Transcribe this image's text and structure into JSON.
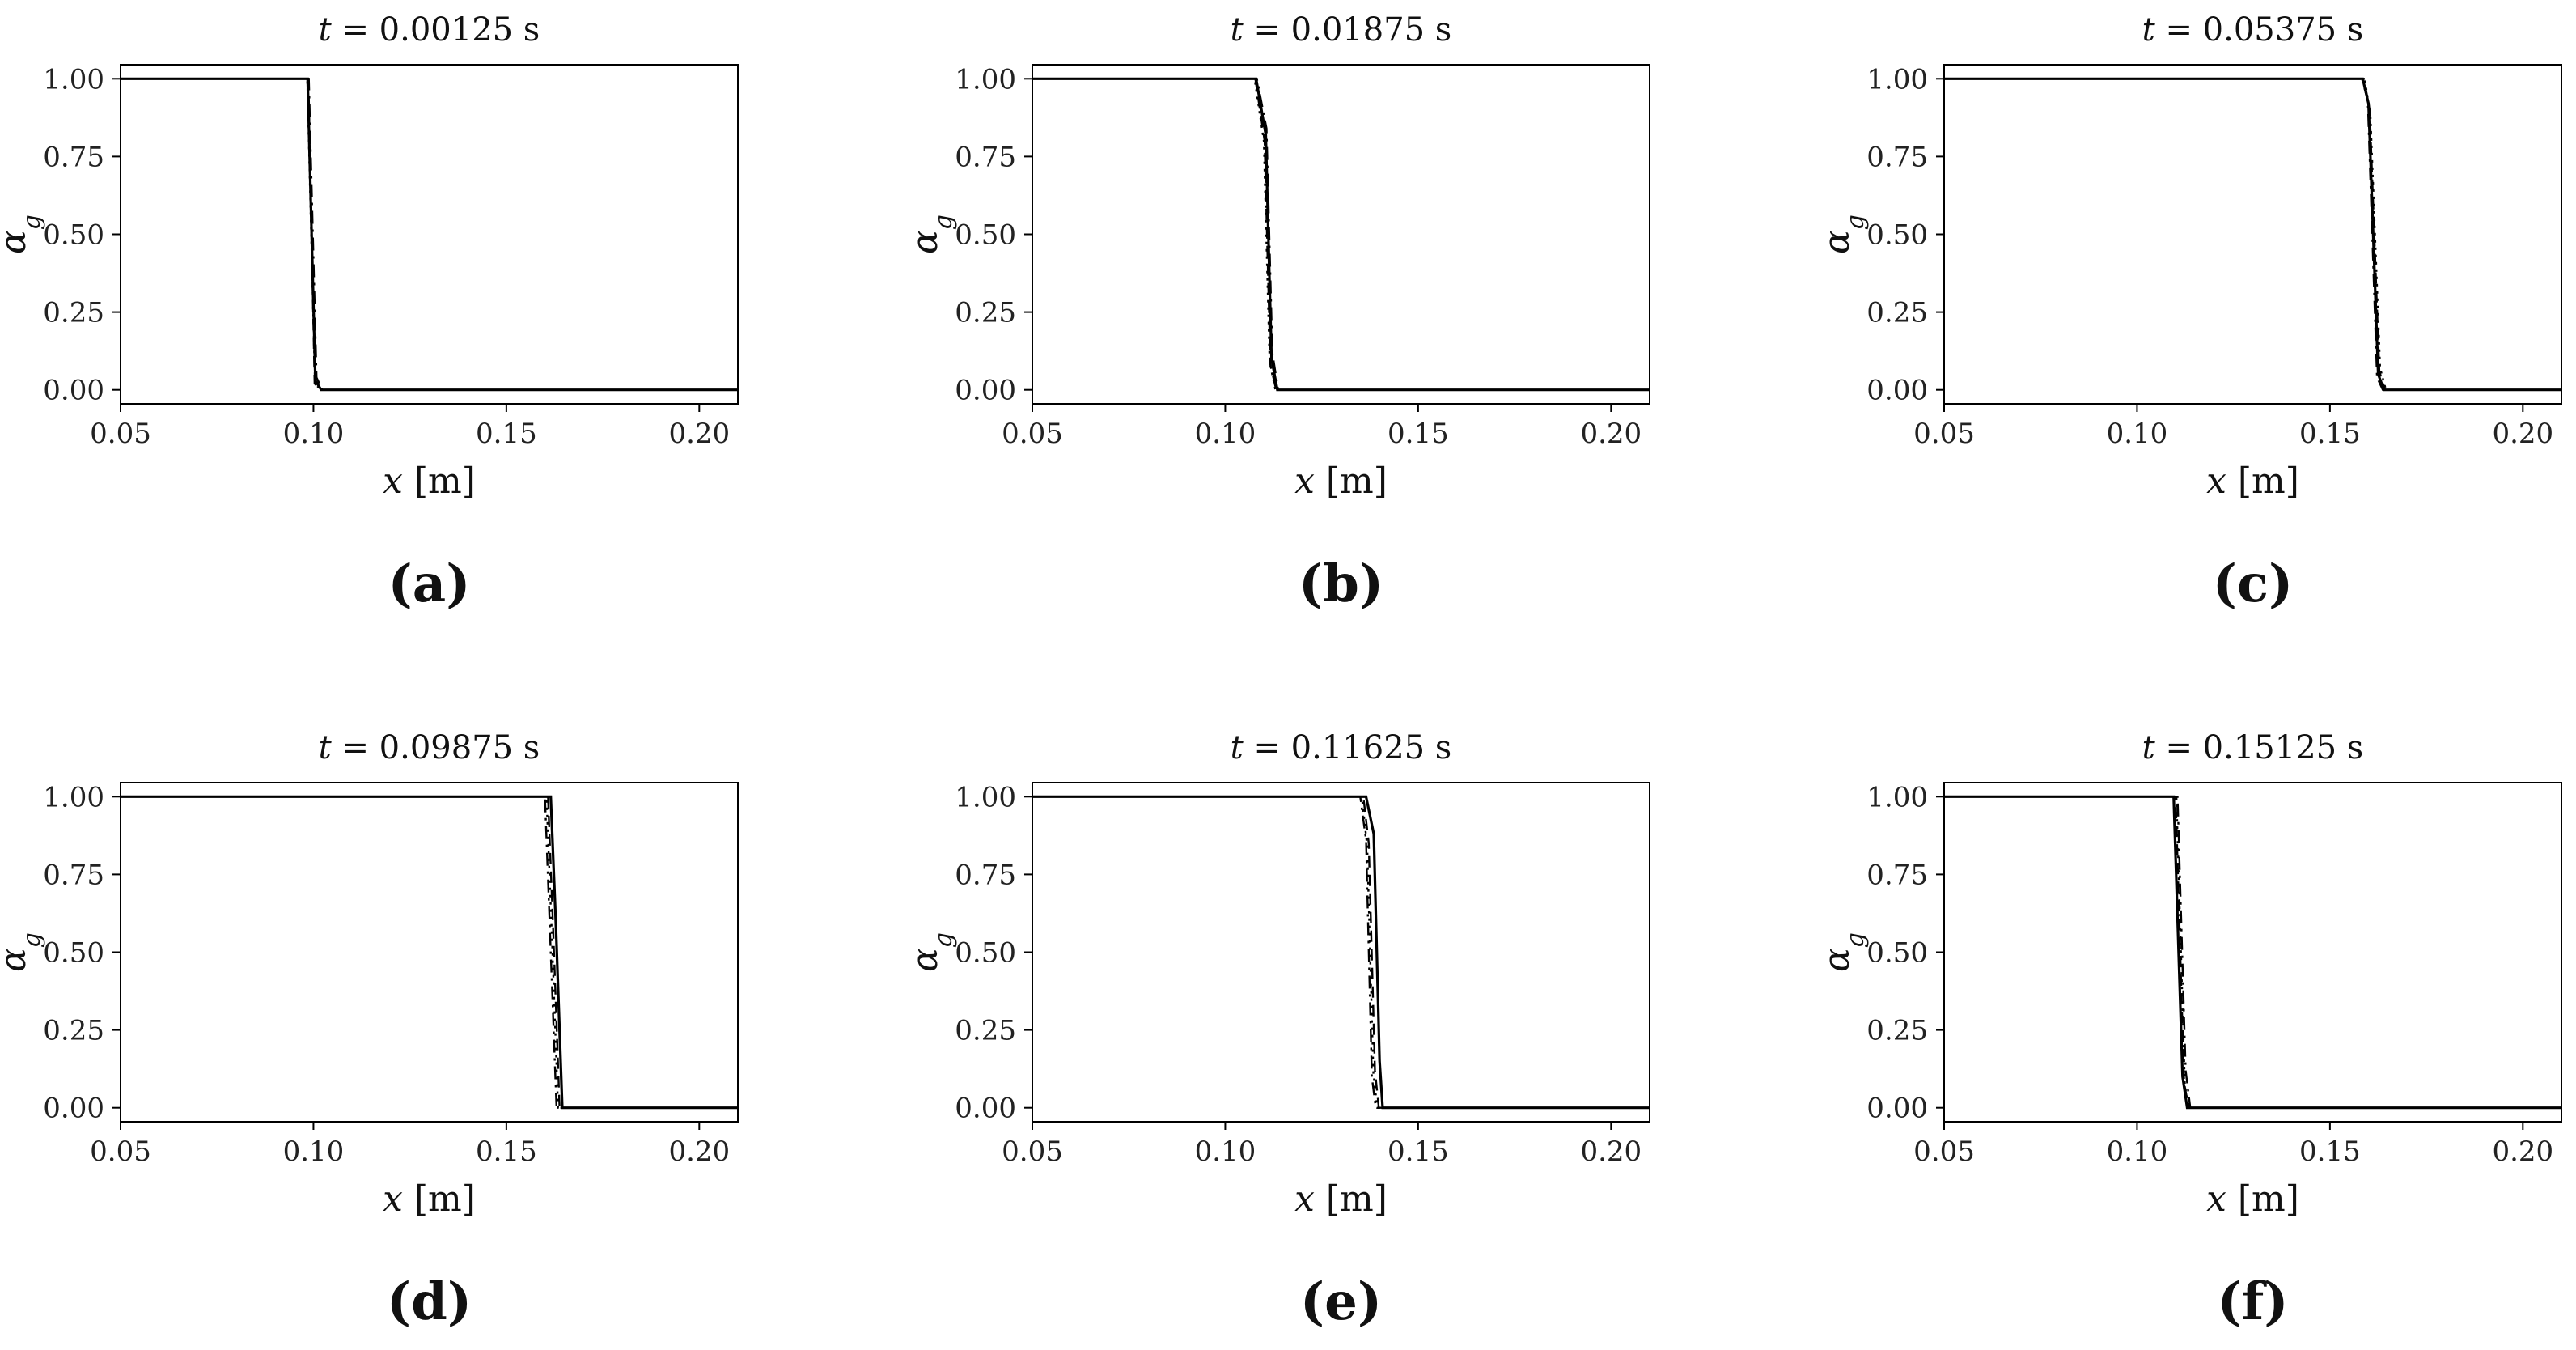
{
  "figure": {
    "panels": [
      {
        "tag": "(a)",
        "title": "t = 0.00125 s",
        "chart_data": {
          "type": "line",
          "xlabel": "x [m]",
          "ylabel": "αg",
          "xlim": [
            0.05,
            0.21
          ],
          "ylim": [
            -0.045,
            1.045
          ],
          "xticks": [
            "0.05",
            "0.10",
            "0.15",
            "0.20"
          ],
          "yticks": [
            "0.00",
            "0.25",
            "0.50",
            "0.75",
            "1.00"
          ],
          "grid": false,
          "series": [
            {
              "style": "solid",
              "x": [
                0.05,
                0.0985,
                0.1005,
                0.102,
                0.21
              ],
              "y": [
                1,
                1,
                0.03,
                0,
                0
              ]
            },
            {
              "style": "dashed",
              "x": [
                0.05,
                0.0987,
                0.1003,
                0.102,
                0.21
              ],
              "y": [
                1,
                1,
                0.02,
                0,
                0
              ]
            },
            {
              "style": "dashdot",
              "x": [
                0.05,
                0.0988,
                0.1008,
                0.1023,
                0.21
              ],
              "y": [
                1,
                1,
                0.04,
                0,
                0
              ]
            },
            {
              "style": "dotted",
              "x": [
                0.05,
                0.0984,
                0.1004,
                0.1019,
                0.21
              ],
              "y": [
                1,
                1,
                0.02,
                0,
                0
              ]
            }
          ]
        }
      },
      {
        "tag": "(b)",
        "title": "t = 0.01875 s",
        "chart_data": {
          "type": "line",
          "xlabel": "x [m]",
          "ylabel": "αg",
          "xlim": [
            0.05,
            0.21
          ],
          "ylim": [
            -0.045,
            1.045
          ],
          "xticks": [
            "0.05",
            "0.10",
            "0.15",
            "0.20"
          ],
          "yticks": [
            "0.00",
            "0.25",
            "0.50",
            "0.75",
            "1.00"
          ],
          "grid": false,
          "series": [
            {
              "style": "solid",
              "x": [
                0.05,
                0.108,
                0.1105,
                0.112,
                0.1135,
                0.21
              ],
              "y": [
                1,
                1,
                0.82,
                0.1,
                0,
                0
              ]
            },
            {
              "style": "dashed",
              "x": [
                0.05,
                0.1078,
                0.1102,
                0.1117,
                0.1132,
                0.21
              ],
              "y": [
                1,
                1,
                0.8,
                0.08,
                0,
                0
              ]
            },
            {
              "style": "dashdot",
              "x": [
                0.05,
                0.1082,
                0.1107,
                0.1122,
                0.1137,
                0.21
              ],
              "y": [
                1,
                1,
                0.84,
                0.12,
                0,
                0
              ]
            },
            {
              "style": "dotted",
              "x": [
                0.05,
                0.1076,
                0.11,
                0.1115,
                0.113,
                0.21
              ],
              "y": [
                1,
                1,
                0.8,
                0.09,
                0,
                0
              ]
            }
          ]
        }
      },
      {
        "tag": "(c)",
        "title": "t = 0.05375 s",
        "chart_data": {
          "type": "line",
          "xlabel": "x [m]",
          "ylabel": "αg",
          "xlim": [
            0.05,
            0.21
          ],
          "ylim": [
            -0.045,
            1.045
          ],
          "xticks": [
            "0.05",
            "0.10",
            "0.15",
            "0.20"
          ],
          "yticks": [
            "0.00",
            "0.25",
            "0.50",
            "0.75",
            "1.00"
          ],
          "grid": false,
          "series": [
            {
              "style": "solid",
              "x": [
                0.05,
                0.1585,
                0.16,
                0.1625,
                0.164,
                0.21
              ],
              "y": [
                1,
                1,
                0.92,
                0.05,
                0,
                0
              ]
            },
            {
              "style": "dashed",
              "x": [
                0.05,
                0.1588,
                0.1603,
                0.1628,
                0.1643,
                0.21
              ],
              "y": [
                1,
                1,
                0.9,
                0.06,
                0,
                0
              ]
            },
            {
              "style": "dashdot",
              "x": [
                0.05,
                0.1583,
                0.1598,
                0.1622,
                0.1637,
                0.21
              ],
              "y": [
                1,
                1,
                0.93,
                0.04,
                0,
                0
              ]
            },
            {
              "style": "dotted",
              "x": [
                0.05,
                0.159,
                0.1605,
                0.163,
                0.1645,
                0.21
              ],
              "y": [
                1,
                1,
                0.88,
                0.07,
                0,
                0
              ]
            }
          ]
        }
      },
      {
        "tag": "(d)",
        "title": "t = 0.09875 s",
        "chart_data": {
          "type": "line",
          "xlabel": "x [m]",
          "ylabel": "αg",
          "xlim": [
            0.05,
            0.21
          ],
          "ylim": [
            -0.045,
            1.045
          ],
          "xticks": [
            "0.05",
            "0.10",
            "0.15",
            "0.20"
          ],
          "yticks": [
            "0.00",
            "0.25",
            "0.50",
            "0.75",
            "1.00"
          ],
          "grid": false,
          "series": [
            {
              "style": "solid",
              "x": [
                0.05,
                0.1615,
                0.1628,
                0.1645,
                0.21
              ],
              "y": [
                1,
                1,
                0.6,
                0,
                0
              ]
            },
            {
              "style": "dashed",
              "x": [
                0.05,
                0.1608,
                0.1622,
                0.1638,
                0.21
              ],
              "y": [
                1,
                1,
                0.55,
                0,
                0
              ]
            },
            {
              "style": "dashdot",
              "x": [
                0.05,
                0.16,
                0.1615,
                0.163,
                0.21
              ],
              "y": [
                1,
                1,
                0.5,
                0,
                0
              ]
            },
            {
              "style": "dotted",
              "x": [
                0.05,
                0.1604,
                0.1619,
                0.1634,
                0.21
              ],
              "y": [
                1,
                1,
                0.52,
                0,
                0
              ]
            }
          ]
        }
      },
      {
        "tag": "(e)",
        "title": "t = 0.11625 s",
        "chart_data": {
          "type": "line",
          "xlabel": "x [m]",
          "ylabel": "αg",
          "xlim": [
            0.05,
            0.21
          ],
          "ylim": [
            -0.045,
            1.045
          ],
          "xticks": [
            "0.05",
            "0.10",
            "0.15",
            "0.20"
          ],
          "yticks": [
            "0.00",
            "0.25",
            "0.50",
            "0.75",
            "1.00"
          ],
          "grid": false,
          "series": [
            {
              "style": "solid",
              "x": [
                0.05,
                0.1365,
                0.1385,
                0.14,
                0.1408,
                0.21
              ],
              "y": [
                1,
                1,
                0.88,
                0.15,
                0,
                0
              ]
            },
            {
              "style": "dashed",
              "x": [
                0.05,
                0.1358,
                0.1372,
                0.1388,
                0.1398,
                0.21
              ],
              "y": [
                1,
                1,
                0.85,
                0.12,
                0,
                0
              ]
            },
            {
              "style": "dashdot",
              "x": [
                0.05,
                0.135,
                0.1365,
                0.138,
                0.139,
                0.21
              ],
              "y": [
                1,
                1,
                0.86,
                0.1,
                0,
                0
              ]
            },
            {
              "style": "dotted",
              "x": [
                0.05,
                0.1354,
                0.1368,
                0.1384,
                0.1394,
                0.21
              ],
              "y": [
                1,
                1,
                0.84,
                0.11,
                0,
                0
              ]
            }
          ]
        }
      },
      {
        "tag": "(f)",
        "title": "t = 0.15125 s",
        "chart_data": {
          "type": "line",
          "xlabel": "x [m]",
          "ylabel": "αg",
          "xlim": [
            0.05,
            0.21
          ],
          "ylim": [
            -0.045,
            1.045
          ],
          "xticks": [
            "0.05",
            "0.10",
            "0.15",
            "0.20"
          ],
          "yticks": [
            "0.00",
            "0.25",
            "0.50",
            "0.75",
            "1.00"
          ],
          "grid": false,
          "series": [
            {
              "style": "solid",
              "x": [
                0.05,
                0.1095,
                0.1118,
                0.113,
                0.21
              ],
              "y": [
                1,
                1,
                0.1,
                0,
                0
              ]
            },
            {
              "style": "dashed",
              "x": [
                0.05,
                0.11,
                0.1122,
                0.1134,
                0.21
              ],
              "y": [
                1,
                1,
                0.08,
                0,
                0
              ]
            },
            {
              "style": "dashdot",
              "x": [
                0.05,
                0.1105,
                0.1126,
                0.1138,
                0.21
              ],
              "y": [
                1,
                1,
                0.12,
                0,
                0
              ]
            },
            {
              "style": "dotted",
              "x": [
                0.05,
                0.1102,
                0.1124,
                0.1136,
                0.21
              ],
              "y": [
                1,
                1,
                0.07,
                0,
                0
              ]
            }
          ]
        }
      }
    ]
  }
}
